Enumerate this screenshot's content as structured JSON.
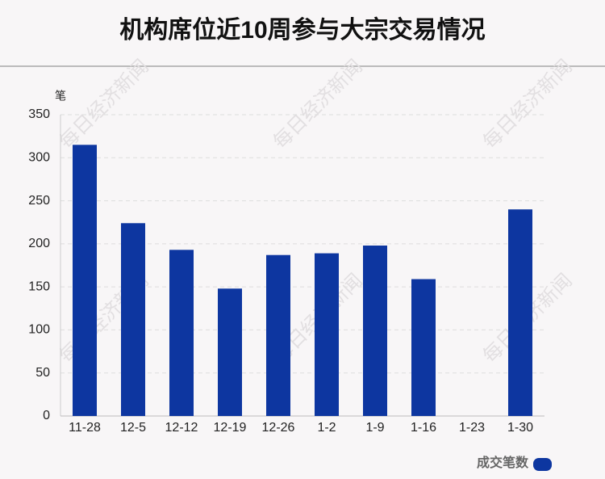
{
  "chart_data": {
    "type": "bar",
    "title": "机构席位近10周参与大宗交易情况",
    "y_unit": "笔",
    "categories": [
      "11-28",
      "12-5",
      "12-12",
      "12-19",
      "12-26",
      "1-2",
      "1-9",
      "1-16",
      "1-23",
      "1-30"
    ],
    "series": [
      {
        "name": "成交笔数",
        "color": "#0d36a0",
        "values": [
          315,
          224,
          193,
          148,
          187,
          189,
          198,
          159,
          0,
          240
        ]
      }
    ],
    "ylim": [
      0,
      350
    ],
    "yticks": [
      0,
      50,
      100,
      150,
      200,
      250,
      300,
      350
    ],
    "grid": true,
    "legend": "bottom-right",
    "watermark": "每日经济新闻"
  }
}
